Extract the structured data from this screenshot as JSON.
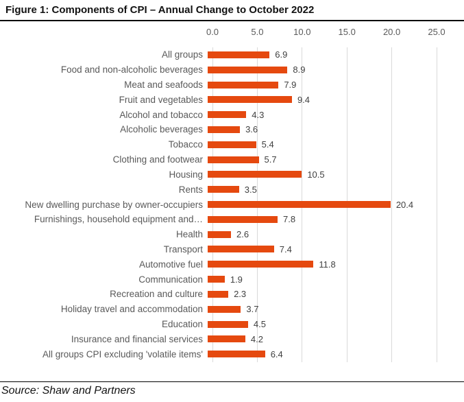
{
  "figure": {
    "title": "Figure 1: Components of CPI – Annual Change to October 2022",
    "source": "Source: Shaw and Partners"
  },
  "chart_data": {
    "type": "bar",
    "orientation": "horizontal",
    "title": "Figure 1: Components of CPI – Annual Change to October 2022",
    "xlabel": "",
    "ylabel": "",
    "xlim": [
      0,
      25
    ],
    "x_ticks": [
      "0.0",
      "5.0",
      "10.0",
      "15.0",
      "20.0",
      "25.0"
    ],
    "grid": true,
    "legend": false,
    "value_labels": true,
    "categories": [
      "All groups",
      "Food and non-alcoholic beverages",
      "Meat and seafoods",
      "Fruit and vegetables",
      "Alcohol and tobacco",
      "Alcoholic beverages",
      "Tobacco",
      "Clothing and footwear",
      "Housing",
      "Rents",
      "New dwelling purchase by owner-occupiers",
      "Furnishings, household equipment and…",
      "Health",
      "Transport",
      "Automotive fuel",
      "Communication",
      "Recreation and culture",
      "Holiday travel and accommodation",
      "Education",
      "Insurance and financial services",
      "All groups CPI excluding 'volatile items'"
    ],
    "values": [
      6.9,
      8.9,
      7.9,
      9.4,
      4.3,
      3.6,
      5.4,
      5.7,
      10.5,
      3.5,
      20.4,
      7.8,
      2.6,
      7.4,
      11.8,
      1.9,
      2.3,
      3.7,
      4.5,
      4.2,
      6.4
    ],
    "colors": {
      "bar": "#e5490f",
      "gridline": "#d9d9d9",
      "category_label": "#595959",
      "value_label": "#404040",
      "title": "#121212",
      "rule": "#000000"
    }
  }
}
